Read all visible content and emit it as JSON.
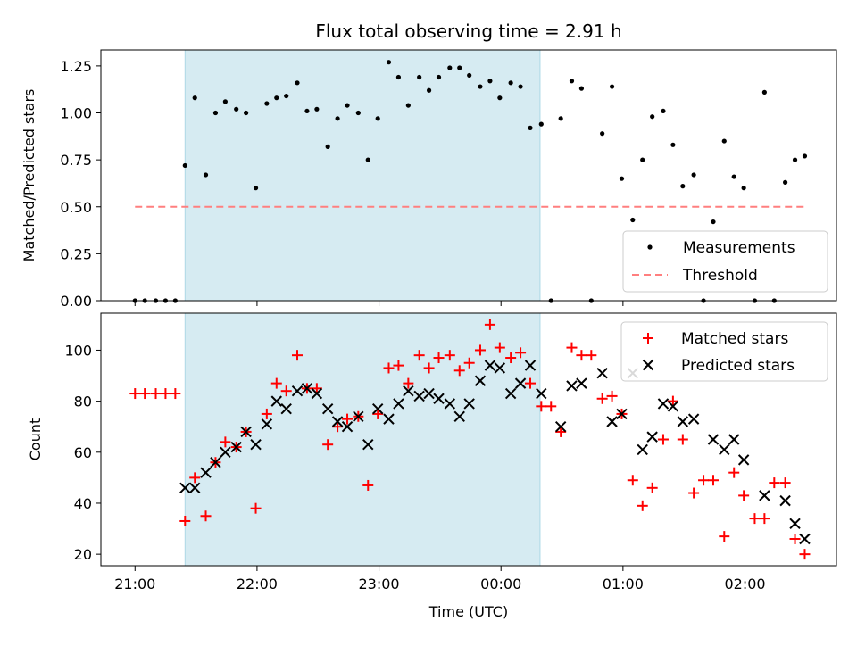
{
  "chart_data": [
    {
      "type": "scatter",
      "title": "Flux total observing time = 2.91 h",
      "ylabel": "Matched/Predicted stars",
      "xlabel": "",
      "x_unit": "hours since 21:00 UTC",
      "xlim": [
        -0.28,
        5.75
      ],
      "ylim": [
        0,
        1.335
      ],
      "yticks": [
        0.0,
        0.25,
        0.5,
        0.75,
        1.0,
        1.25
      ],
      "ytick_labels": [
        "0.00",
        "0.25",
        "0.50",
        "0.75",
        "1.00",
        "1.25"
      ],
      "xticks": [
        0,
        1,
        2,
        3,
        4,
        5
      ],
      "shaded_region": {
        "x0": 0.41,
        "x1": 3.32,
        "color": "#add8e6"
      },
      "threshold": {
        "name": "Threshold",
        "y": 0.5,
        "x0": 0,
        "x1": 5.5,
        "color": "#ff7f7f"
      },
      "legend": {
        "placement": "lower-right",
        "entries": [
          "Measurements",
          "Threshold"
        ]
      },
      "series": [
        {
          "name": "Measurements",
          "color": "#000000",
          "x": [
            0.0,
            0.08,
            0.17,
            0.25,
            0.33,
            0.41,
            0.49,
            0.58,
            0.66,
            0.74,
            0.83,
            0.91,
            0.99,
            1.08,
            1.16,
            1.24,
            1.33,
            1.41,
            1.49,
            1.58,
            1.66,
            1.74,
            1.83,
            1.91,
            1.99,
            2.08,
            2.16,
            2.24,
            2.33,
            2.41,
            2.49,
            2.58,
            2.66,
            2.74,
            2.83,
            2.91,
            2.99,
            3.08,
            3.16,
            3.24,
            3.33,
            3.41,
            3.49,
            3.58,
            3.66,
            3.74,
            3.83,
            3.91,
            3.99,
            4.08,
            4.16,
            4.24,
            4.33,
            4.41,
            4.49,
            4.58,
            4.66,
            4.74,
            4.83,
            4.91,
            4.99,
            5.08,
            5.16,
            5.24,
            5.33,
            5.41,
            5.49
          ],
          "y": [
            0.0,
            0.0,
            0.0,
            0.0,
            0.0,
            0.72,
            1.08,
            0.67,
            1.0,
            1.06,
            1.02,
            1.0,
            0.6,
            1.05,
            1.08,
            1.09,
            1.16,
            1.01,
            1.02,
            0.82,
            0.97,
            1.04,
            1.0,
            0.75,
            0.97,
            1.27,
            1.19,
            1.04,
            1.19,
            1.12,
            1.19,
            1.24,
            1.24,
            1.2,
            1.14,
            1.17,
            1.08,
            1.16,
            1.14,
            0.92,
            0.94,
            0.0,
            0.97,
            1.17,
            1.13,
            0.0,
            0.89,
            1.14,
            0.65,
            0.43,
            0.75,
            0.98,
            1.01,
            0.83,
            0.61,
            0.67,
            0.0,
            0.42,
            0.85,
            0.66,
            0.6,
            0.0,
            1.11,
            0.0,
            0.63,
            0.75,
            0.77
          ]
        }
      ]
    },
    {
      "type": "scatter",
      "title": "",
      "ylabel": "Count",
      "xlabel": "Time (UTC)",
      "x_unit": "hours since 21:00 UTC",
      "xlim": [
        -0.28,
        5.75
      ],
      "ylim": [
        15.5,
        114.5
      ],
      "yticks": [
        20,
        40,
        60,
        80,
        100
      ],
      "ytick_labels": [
        "20",
        "40",
        "60",
        "80",
        "100"
      ],
      "xticks": [
        0,
        1,
        2,
        3,
        4,
        5
      ],
      "xtick_labels": [
        "21:00",
        "22:00",
        "23:00",
        "00:00",
        "01:00",
        "02:00"
      ],
      "shaded_region": {
        "x0": 0.41,
        "x1": 3.32,
        "color": "#add8e6"
      },
      "legend": {
        "placement": "upper-right",
        "entries": [
          "Matched stars",
          "Predicted stars"
        ]
      },
      "series": [
        {
          "name": "Matched stars",
          "marker": "plus",
          "color": "#ff0000",
          "x": [
            0.0,
            0.08,
            0.17,
            0.25,
            0.33,
            0.41,
            0.49,
            0.58,
            0.66,
            0.74,
            0.83,
            0.91,
            0.99,
            1.08,
            1.16,
            1.24,
            1.33,
            1.41,
            1.49,
            1.58,
            1.66,
            1.74,
            1.83,
            1.91,
            1.99,
            2.08,
            2.16,
            2.24,
            2.33,
            2.41,
            2.49,
            2.58,
            2.66,
            2.74,
            2.83,
            2.91,
            2.99,
            3.08,
            3.16,
            3.24,
            3.33,
            3.41,
            3.49,
            3.58,
            3.66,
            3.74,
            3.83,
            3.91,
            3.99,
            4.08,
            4.16,
            4.24,
            4.33,
            4.41,
            4.49,
            4.58,
            4.66,
            4.74,
            4.83,
            4.91,
            4.99,
            5.08,
            5.16,
            5.24,
            5.33,
            5.41,
            5.49
          ],
          "y": [
            83,
            83,
            83,
            83,
            83,
            33,
            50,
            35,
            56,
            64,
            62,
            68,
            38,
            75,
            87,
            84,
            98,
            85,
            85,
            63,
            70,
            73,
            74,
            47,
            75,
            93,
            94,
            87,
            98,
            93,
            97,
            98,
            92,
            95,
            100,
            110,
            101,
            97,
            99,
            87,
            78,
            78,
            68,
            101,
            98,
            98,
            81,
            82,
            75,
            49,
            39,
            46,
            65,
            80,
            65,
            44,
            49,
            49,
            27,
            52,
            43,
            34,
            34,
            48,
            48,
            26,
            20
          ]
        },
        {
          "name": "Predicted stars",
          "marker": "x",
          "color": "#000000",
          "x": [
            0.41,
            0.49,
            0.58,
            0.66,
            0.74,
            0.83,
            0.91,
            0.99,
            1.08,
            1.16,
            1.24,
            1.33,
            1.41,
            1.49,
            1.58,
            1.66,
            1.74,
            1.83,
            1.91,
            1.99,
            2.08,
            2.16,
            2.24,
            2.33,
            2.41,
            2.49,
            2.58,
            2.66,
            2.74,
            2.83,
            2.91,
            2.99,
            3.08,
            3.16,
            3.24,
            3.33,
            3.49,
            3.58,
            3.66,
            3.83,
            3.91,
            3.99,
            4.08,
            4.16,
            4.24,
            4.33,
            4.41,
            4.49,
            4.58,
            4.74,
            4.83,
            4.91,
            4.99,
            5.16,
            5.33,
            5.41,
            5.49
          ],
          "y": [
            46,
            46,
            52,
            56,
            60,
            62,
            68,
            63,
            71,
            80,
            77,
            84,
            85,
            83,
            77,
            72,
            70,
            74,
            63,
            77,
            73,
            79,
            84,
            82,
            83,
            81,
            79,
            74,
            79,
            88,
            94,
            93,
            83,
            87,
            94,
            83,
            70,
            86,
            87,
            91,
            72,
            75,
            91,
            61,
            66,
            79,
            78,
            72,
            73,
            65,
            61,
            65,
            57,
            43,
            41,
            32,
            26
          ]
        }
      ]
    }
  ]
}
